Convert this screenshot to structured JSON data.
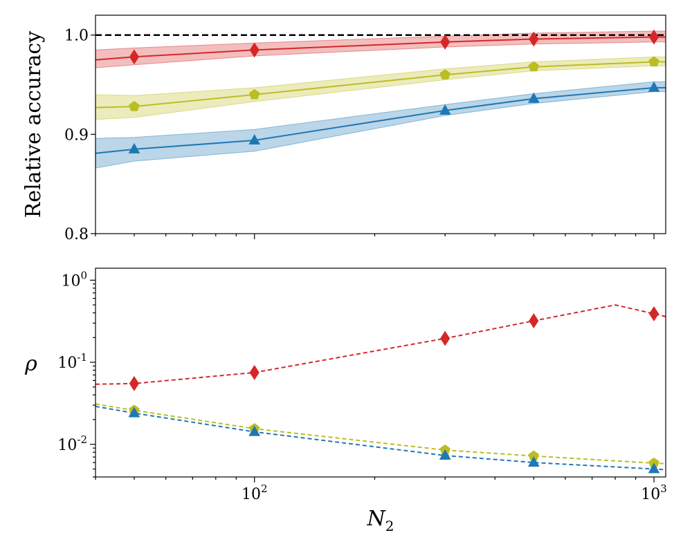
{
  "chart_data": [
    {
      "type": "line",
      "ylabel": "Relative accuracy",
      "xscale": "log",
      "xlim": [
        40,
        1070
      ],
      "ylim": [
        0.8,
        1.02
      ],
      "yticks": [
        0.8,
        0.9,
        1.0
      ],
      "ytick_labels": [
        "0.8",
        "0.9",
        "1.0"
      ],
      "reference_line": {
        "y": 1.0,
        "style": "dashed",
        "color": "#000000"
      },
      "grid": false,
      "series": [
        {
          "color": "#d62728",
          "marker": "diamond",
          "x": [
            40,
            50,
            100,
            300,
            500,
            1000,
            1070
          ],
          "y": [
            0.975,
            0.978,
            0.985,
            0.993,
            0.996,
            0.998,
            0.998
          ],
          "band_low": [
            0.967,
            0.97,
            0.979,
            0.988,
            0.991,
            0.993,
            0.993
          ],
          "band_high": [
            0.985,
            0.987,
            0.992,
            0.999,
            1.002,
            1.004,
            1.004
          ],
          "marker_x": [
            50,
            100,
            300,
            500,
            1000
          ]
        },
        {
          "color": "#bcbd22",
          "marker": "pentagon",
          "x": [
            40,
            50,
            100,
            300,
            500,
            1000,
            1070
          ],
          "y": [
            0.927,
            0.928,
            0.94,
            0.96,
            0.968,
            0.973,
            0.973
          ],
          "band_low": [
            0.915,
            0.917,
            0.933,
            0.955,
            0.964,
            0.969,
            0.969
          ],
          "band_high": [
            0.94,
            0.939,
            0.947,
            0.966,
            0.973,
            0.978,
            0.978
          ],
          "marker_x": [
            50,
            100,
            300,
            500,
            1000
          ]
        },
        {
          "color": "#1f77b4",
          "marker": "triangle",
          "x": [
            40,
            50,
            100,
            300,
            500,
            1000,
            1070
          ],
          "y": [
            0.881,
            0.885,
            0.894,
            0.924,
            0.936,
            0.947,
            0.947
          ],
          "band_low": [
            0.866,
            0.873,
            0.883,
            0.919,
            0.931,
            0.943,
            0.943
          ],
          "band_high": [
            0.896,
            0.897,
            0.905,
            0.93,
            0.941,
            0.953,
            0.953
          ],
          "marker_x": [
            50,
            100,
            300,
            500,
            1000
          ]
        }
      ]
    },
    {
      "type": "line",
      "xlabel": "N2",
      "ylabel": "ρ",
      "xscale": "log",
      "yscale": "log",
      "xlim": [
        40,
        1070
      ],
      "ylim": [
        0.004,
        1.4
      ],
      "xticks": [
        100,
        1000
      ],
      "xtick_labels": [
        "10^2",
        "10^3"
      ],
      "yticks": [
        0.01,
        0.1,
        1
      ],
      "ytick_labels": [
        "10^-2",
        "10^-1",
        "10^0"
      ],
      "grid": false,
      "series": [
        {
          "color": "#d62728",
          "marker": "diamond",
          "linestyle": "dashed",
          "x": [
            40,
            50,
            100,
            300,
            500,
            800,
            1000,
            1070
          ],
          "y": [
            0.054,
            0.055,
            0.075,
            0.195,
            0.32,
            0.5,
            0.39,
            0.36
          ],
          "marker_x": [
            50,
            100,
            300,
            500,
            1000
          ]
        },
        {
          "color": "#bcbd22",
          "marker": "pentagon",
          "linestyle": "dashed",
          "x": [
            40,
            50,
            100,
            300,
            500,
            1000,
            1070
          ],
          "y": [
            0.031,
            0.026,
            0.0155,
            0.0085,
            0.0072,
            0.0059,
            0.0058
          ],
          "marker_x": [
            50,
            100,
            300,
            500,
            1000
          ]
        },
        {
          "color": "#1f77b4",
          "marker": "triangle",
          "linestyle": "dashed",
          "x": [
            40,
            50,
            100,
            300,
            500,
            1000,
            1070
          ],
          "y": [
            0.029,
            0.024,
            0.0142,
            0.0073,
            0.006,
            0.005,
            0.0049
          ],
          "marker_x": [
            50,
            100,
            300,
            500,
            1000
          ]
        }
      ]
    }
  ]
}
